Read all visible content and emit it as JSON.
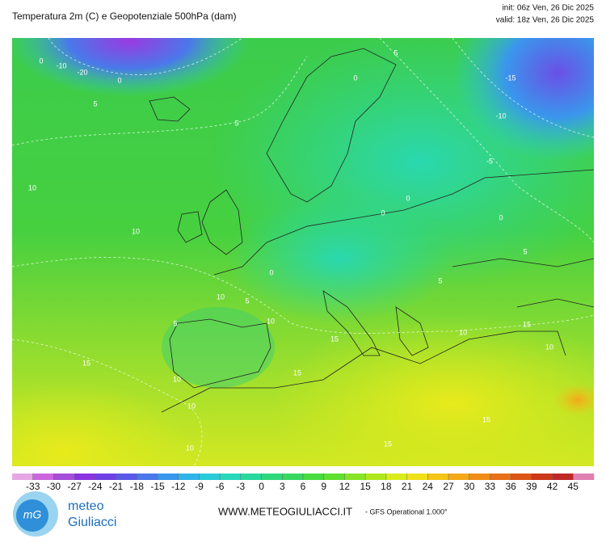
{
  "header": {
    "title": "Temperatura 2m (C) e Geopotenziale 500hPa (dam)",
    "init": "init: 06z Ven, 26 Dic 2025",
    "valid": "valid: 18z Ven, 26 Dic 2025"
  },
  "map": {
    "contour_labels": [
      "0",
      "-10",
      "-20",
      "0",
      "5",
      "5",
      "10",
      "10",
      "5",
      "0",
      "-15",
      "-10",
      "-5",
      "0",
      "0",
      "0",
      "5",
      "10",
      "5",
      "10",
      "5",
      "15",
      "15",
      "10",
      "10",
      "15",
      "15",
      "10",
      "15",
      "10",
      "5",
      "0",
      "10",
      "15"
    ]
  },
  "colorbar": {
    "ticks": [
      -33,
      -30,
      -27,
      -24,
      -21,
      -18,
      -15,
      -12,
      -9,
      -6,
      -3,
      0,
      3,
      6,
      9,
      12,
      15,
      18,
      21,
      24,
      27,
      30,
      33,
      36,
      39,
      42,
      45
    ],
    "colors": [
      "#e6a6e6",
      "#cc66dd",
      "#a64dd9",
      "#8a33e0",
      "#7040e6",
      "#5a5ae8",
      "#4a78ea",
      "#3a96ec",
      "#30b4ea",
      "#2acbd8",
      "#28d8bc",
      "#2ad89c",
      "#30d87c",
      "#38d860",
      "#48dc40",
      "#60e030",
      "#88e428",
      "#b0e820",
      "#d8ec1c",
      "#f0e018",
      "#f4c418",
      "#f4a818",
      "#f08c18",
      "#e87018",
      "#dc5418",
      "#cc3818",
      "#c02828",
      "#e080b0"
    ]
  },
  "footer": {
    "logo_top": "meteo",
    "logo_bottom": "Giuliacci",
    "website": "WWW.METEOGIULIACCI.IT",
    "model": "- GFS Operational 1.000°"
  }
}
